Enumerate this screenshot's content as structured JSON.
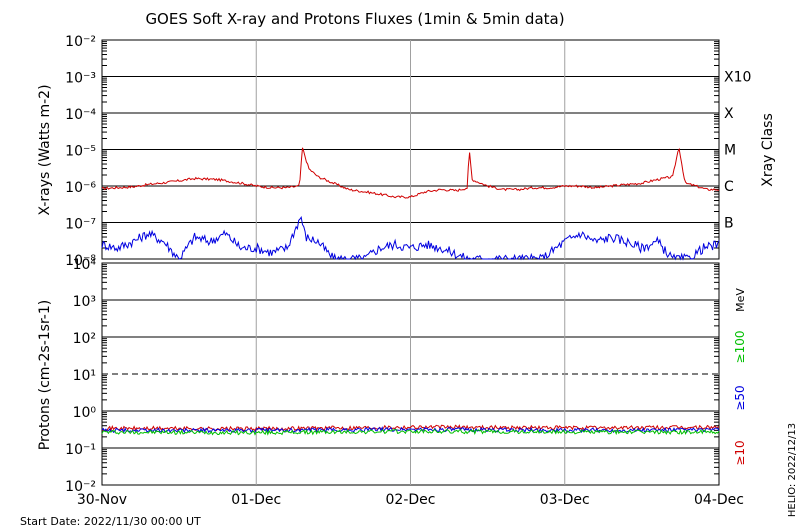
{
  "title": "GOES Soft X-ray and Protons Fluxes   (1min & 5min data)",
  "start_date": "Start Date: 2022/11/30 00:00 UT",
  "side_tag": "HELIO: 2022/12/13",
  "colors": {
    "red": "#d00000",
    "blue": "#0000e0",
    "green": "#00c000",
    "grid": "#000000",
    "day_line": "#a0a0a0"
  },
  "chart_data": [
    {
      "type": "line",
      "name": "xray",
      "ylabel": "X-rays (Watts m-2)",
      "yscale": "log",
      "ylim": [
        1e-08,
        0.01
      ],
      "ytick_labels": [
        "10⁻⁸",
        "10⁻⁷",
        "10⁻⁶",
        "10⁻⁵",
        "10⁻⁴",
        "10⁻³",
        "10⁻²"
      ],
      "right_label": "Xray Class",
      "class_labels": [
        {
          "label": "B",
          "value": 1e-07
        },
        {
          "label": "C",
          "value": 1e-06
        },
        {
          "label": "M",
          "value": 1e-05
        },
        {
          "label": "X",
          "value": 0.0001
        },
        {
          "label": "X10",
          "value": 0.001
        }
      ],
      "xlim": [
        "2022-11-30 00:00",
        "2022-12-04 00:00"
      ],
      "xtick_labels": [
        "30-Nov",
        "01-Dec",
        "02-Dec",
        "03-Dec",
        "04-Dec"
      ],
      "series": [
        {
          "color": "red",
          "points": [
            [
              0.0,
              8.5e-07
            ],
            [
              0.1,
              9e-07
            ],
            [
              0.2,
              9.5e-07
            ],
            [
              0.3,
              1.1e-06
            ],
            [
              0.45,
              1.3e-06
            ],
            [
              0.6,
              1.6e-06
            ],
            [
              0.75,
              1.5e-06
            ],
            [
              0.9,
              1.2e-06
            ],
            [
              1.0,
              1e-06
            ],
            [
              1.1,
              9e-07
            ],
            [
              1.2,
              9e-07
            ],
            [
              1.28,
              1e-06
            ],
            [
              1.3,
              1.1e-05
            ],
            [
              1.34,
              3e-06
            ],
            [
              1.4,
              1.8e-06
            ],
            [
              1.5,
              1.2e-06
            ],
            [
              1.6,
              8e-07
            ],
            [
              1.7,
              7e-07
            ],
            [
              1.8,
              6e-07
            ],
            [
              1.9,
              5e-07
            ],
            [
              2.0,
              5e-07
            ],
            [
              2.1,
              7e-07
            ],
            [
              2.2,
              8e-07
            ],
            [
              2.3,
              7.5e-07
            ],
            [
              2.37,
              9e-07
            ],
            [
              2.38,
              1.1e-05
            ],
            [
              2.4,
              1.5e-06
            ],
            [
              2.5,
              1e-06
            ],
            [
              2.6,
              8e-07
            ],
            [
              2.7,
              8e-07
            ],
            [
              2.8,
              9e-07
            ],
            [
              2.9,
              9e-07
            ],
            [
              3.0,
              1e-06
            ],
            [
              3.1,
              1e-06
            ],
            [
              3.2,
              9e-07
            ],
            [
              3.3,
              1e-06
            ],
            [
              3.4,
              1.1e-06
            ],
            [
              3.5,
              1.2e-06
            ],
            [
              3.6,
              1.5e-06
            ],
            [
              3.7,
              1.8e-06
            ],
            [
              3.74,
              1.2e-05
            ],
            [
              3.78,
              1.2e-06
            ],
            [
              3.85,
              1e-06
            ],
            [
              3.92,
              8e-07
            ],
            [
              4.0,
              8e-07
            ]
          ]
        },
        {
          "color": "blue",
          "points": [
            [
              0.0,
              2.5e-08
            ],
            [
              0.1,
              2e-08
            ],
            [
              0.2,
              3e-08
            ],
            [
              0.3,
              5e-08
            ],
            [
              0.4,
              3e-08
            ],
            [
              0.5,
              1e-08
            ],
            [
              0.6,
              4e-08
            ],
            [
              0.7,
              3e-08
            ],
            [
              0.8,
              5e-08
            ],
            [
              0.9,
              2e-08
            ],
            [
              1.0,
              2e-08
            ],
            [
              1.1,
              1.5e-08
            ],
            [
              1.2,
              2e-08
            ],
            [
              1.29,
              1.5e-07
            ],
            [
              1.32,
              4e-08
            ],
            [
              1.4,
              3e-08
            ],
            [
              1.5,
              1e-08
            ],
            [
              1.7,
              1e-08
            ],
            [
              1.8,
              2e-08
            ],
            [
              1.9,
              2.5e-08
            ],
            [
              2.0,
              2e-08
            ],
            [
              2.1,
              2.5e-08
            ],
            [
              2.2,
              2e-08
            ],
            [
              2.37,
              1e-08
            ],
            [
              2.5,
              1e-08
            ],
            [
              2.7,
              1e-08
            ],
            [
              2.85,
              1e-08
            ],
            [
              3.0,
              3e-08
            ],
            [
              3.1,
              5e-08
            ],
            [
              3.2,
              3e-08
            ],
            [
              3.3,
              4e-08
            ],
            [
              3.4,
              3e-08
            ],
            [
              3.5,
              2e-08
            ],
            [
              3.6,
              3e-08
            ],
            [
              3.7,
              1e-08
            ],
            [
              3.8,
              1e-08
            ],
            [
              3.9,
              2e-08
            ],
            [
              4.0,
              2.5e-08
            ]
          ]
        }
      ]
    },
    {
      "type": "line",
      "name": "protons",
      "ylabel": "Protons (cm-2s-1sr-1)",
      "yscale": "log",
      "ylim": [
        0.01,
        10000
      ],
      "ytick_labels": [
        "10⁻²",
        "10⁻¹",
        "10⁰",
        "10¹",
        "10²",
        "10³",
        "10⁴"
      ],
      "threshold": 10,
      "xlim": [
        "2022-11-30 00:00",
        "2022-12-04 00:00"
      ],
      "xtick_labels": [
        "30-Nov",
        "01-Dec",
        "02-Dec",
        "03-Dec",
        "04-Dec"
      ],
      "right_unit": "MeV",
      "series": [
        {
          "name": "≥10",
          "color": "red",
          "points": [
            [
              0.0,
              0.34
            ],
            [
              1.0,
              0.33
            ],
            [
              2.0,
              0.37
            ],
            [
              3.0,
              0.35
            ],
            [
              4.0,
              0.36
            ]
          ]
        },
        {
          "name": "≥50",
          "color": "blue",
          "points": [
            [
              0.0,
              0.3
            ],
            [
              1.0,
              0.3
            ],
            [
              2.0,
              0.32
            ],
            [
              3.0,
              0.3
            ],
            [
              4.0,
              0.31
            ]
          ]
        },
        {
          "name": "≥100",
          "color": "green",
          "points": [
            [
              0.0,
              0.27
            ],
            [
              1.0,
              0.26
            ],
            [
              2.0,
              0.28
            ],
            [
              3.0,
              0.27
            ],
            [
              4.0,
              0.27
            ]
          ]
        }
      ]
    }
  ]
}
